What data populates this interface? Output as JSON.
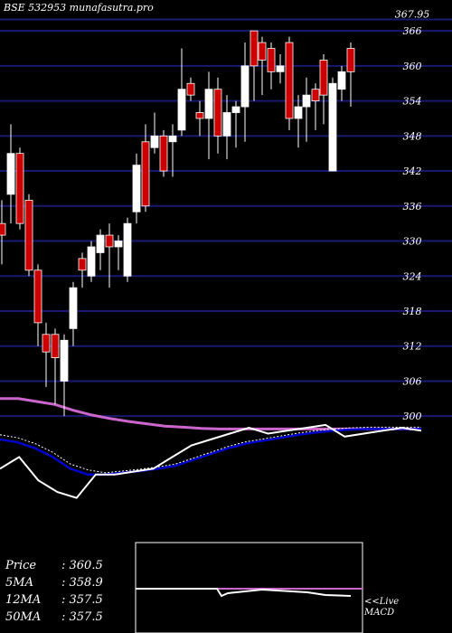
{
  "header": {
    "watermark": "BSE 532953 munafasutra.pro"
  },
  "stats": [
    {
      "label": "Price",
      "value": "360.5"
    },
    {
      "label": "5MA",
      "value": "358.9"
    },
    {
      "label": "12MA",
      "value": "357.5"
    },
    {
      "label": "50MA",
      "value": "357.5"
    }
  ],
  "macd_panel": {
    "label_live": "<<Live",
    "label_macd": "MACD"
  },
  "colors": {
    "background": "#000000",
    "grid": "#191970",
    "up": "#ffffff",
    "down": "#cc0000",
    "ma_slow": "#cc66cc",
    "ma_fast": "#0000cc",
    "line": "#ffffff"
  },
  "chart_data": {
    "type": "candlestick",
    "y_ticks": [
      "367.95",
      "366",
      "360",
      "354",
      "348",
      "342",
      "336",
      "330",
      "324",
      "318",
      "312",
      "306",
      "300"
    ],
    "ylim": [
      296,
      368.5
    ],
    "grid": true,
    "candles": [
      {
        "x": 2,
        "o": 333,
        "c": 331,
        "h": 337,
        "l": 326
      },
      {
        "x": 12,
        "o": 338,
        "c": 345,
        "h": 350,
        "l": 333
      },
      {
        "x": 22,
        "o": 345,
        "c": 333,
        "h": 346,
        "l": 332
      },
      {
        "x": 32,
        "o": 337,
        "c": 325,
        "h": 338,
        "l": 324
      },
      {
        "x": 42,
        "o": 325,
        "c": 316,
        "h": 326,
        "l": 312
      },
      {
        "x": 51,
        "o": 314,
        "c": 311,
        "h": 316,
        "l": 305
      },
      {
        "x": 61,
        "o": 314,
        "c": 310,
        "h": 315,
        "l": 302
      },
      {
        "x": 71,
        "o": 306,
        "c": 313,
        "h": 314,
        "l": 300
      },
      {
        "x": 81,
        "o": 315,
        "c": 322,
        "h": 323,
        "l": 312
      },
      {
        "x": 91,
        "o": 327,
        "c": 325,
        "h": 328,
        "l": 322
      },
      {
        "x": 101,
        "o": 324,
        "c": 329,
        "h": 330,
        "l": 323
      },
      {
        "x": 111,
        "o": 328,
        "c": 331,
        "h": 332,
        "l": 325
      },
      {
        "x": 121,
        "o": 331,
        "c": 329,
        "h": 333,
        "l": 322
      },
      {
        "x": 131,
        "o": 329,
        "c": 330,
        "h": 331,
        "l": 325
      },
      {
        "x": 141,
        "o": 324,
        "c": 333,
        "h": 334,
        "l": 323
      },
      {
        "x": 151,
        "o": 335,
        "c": 343,
        "h": 345,
        "l": 333
      },
      {
        "x": 161,
        "o": 347,
        "c": 336,
        "h": 350,
        "l": 335
      },
      {
        "x": 171,
        "o": 346,
        "c": 348,
        "h": 352,
        "l": 345
      },
      {
        "x": 181,
        "o": 348,
        "c": 342,
        "h": 349,
        "l": 341
      },
      {
        "x": 191,
        "o": 347,
        "c": 348,
        "h": 350,
        "l": 341
      },
      {
        "x": 201,
        "o": 349,
        "c": 356,
        "h": 363,
        "l": 348
      },
      {
        "x": 211,
        "o": 357,
        "c": 355,
        "h": 358,
        "l": 354
      },
      {
        "x": 221,
        "o": 352,
        "c": 351,
        "h": 354,
        "l": 348
      },
      {
        "x": 231,
        "o": 351,
        "c": 356,
        "h": 359,
        "l": 344
      },
      {
        "x": 241,
        "o": 356,
        "c": 348,
        "h": 358,
        "l": 345
      },
      {
        "x": 251,
        "o": 348,
        "c": 352,
        "h": 355,
        "l": 344
      },
      {
        "x": 261,
        "o": 352,
        "c": 353,
        "h": 354,
        "l": 346
      },
      {
        "x": 271,
        "o": 353,
        "c": 360,
        "h": 364,
        "l": 347
      },
      {
        "x": 281,
        "o": 366,
        "c": 360,
        "h": 366,
        "l": 354
      },
      {
        "x": 290,
        "o": 364,
        "c": 361,
        "h": 365,
        "l": 355
      },
      {
        "x": 300,
        "o": 363,
        "c": 359,
        "h": 364,
        "l": 356
      },
      {
        "x": 310,
        "o": 359,
        "c": 360,
        "h": 362,
        "l": 357
      },
      {
        "x": 320,
        "o": 364,
        "c": 351,
        "h": 365,
        "l": 349
      },
      {
        "x": 330,
        "o": 351,
        "c": 353,
        "h": 355,
        "l": 346
      },
      {
        "x": 339,
        "o": 353,
        "c": 355,
        "h": 358,
        "l": 347
      },
      {
        "x": 349,
        "o": 356,
        "c": 354,
        "h": 357,
        "l": 349
      },
      {
        "x": 358,
        "o": 361,
        "c": 355,
        "h": 362,
        "l": 350
      },
      {
        "x": 368,
        "o": 342,
        "c": 357,
        "h": 358,
        "l": 342
      },
      {
        "x": 378,
        "o": 356,
        "c": 359,
        "h": 360,
        "l": 354
      },
      {
        "x": 388,
        "o": 363,
        "c": 359,
        "h": 364,
        "l": 353
      }
    ],
    "ma_pink_y": [
      303,
      303,
      302.5,
      302,
      301,
      300.2,
      299.6,
      299.1,
      298.7,
      298.3,
      298.1,
      297.9,
      297.8,
      297.8,
      297.8,
      297.8,
      297.8,
      297.8,
      297.8,
      297.8,
      297.8,
      297.8,
      297.8,
      297.8
    ],
    "ma_blue_y": [
      296,
      295.5,
      294.5,
      293,
      291,
      290,
      290,
      290.3,
      290.6,
      291,
      291.5,
      292.5,
      293.5,
      294.5,
      295.3,
      295.8,
      296.3,
      296.8,
      297.2,
      297.5,
      297.7,
      297.8,
      297.8,
      297.8,
      297.8
    ],
    "price_line_y": [
      291,
      293,
      289,
      287,
      286,
      290,
      290,
      290.5,
      291,
      293,
      295,
      296,
      297,
      298,
      297,
      297.5,
      298,
      298.5,
      296.5,
      297,
      297.5,
      298,
      297.5
    ]
  }
}
